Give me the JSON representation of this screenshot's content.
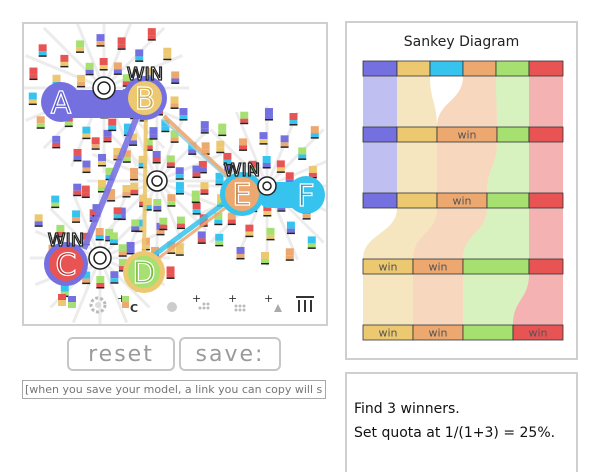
{
  "model": {
    "candidates": [
      {
        "letter": "A",
        "color": "#7470e0",
        "winner": false
      },
      {
        "letter": "B",
        "color": "#ecc870",
        "winner": true
      },
      {
        "letter": "C",
        "color": "#e85454",
        "winner": true
      },
      {
        "letter": "D",
        "color": "#a6e070",
        "winner": false
      },
      {
        "letter": "E",
        "color": "#eda870",
        "winner": true
      },
      {
        "letter": "F",
        "color": "#36c4ee",
        "winner": false
      }
    ],
    "win_label": "WIN",
    "tool_labels": {
      "add_candidate": "C",
      "add_voters": "+",
      "add_ticks": "+",
      "add_triangle": "+"
    }
  },
  "buttons": {
    "reset_label": "reset",
    "save_label": "save:"
  },
  "save_link": {
    "placeholder": "[when you save your model, a link you can copy will show up here]"
  },
  "sankey": {
    "title": "Sankey Diagram",
    "columns": [
      "#7470e0",
      "#ecc870",
      "#36c4ee",
      "#eda870",
      "#a6e070",
      "#e85454"
    ],
    "rounds": [
      [
        {
          "color": "#7470e0",
          "label": ""
        },
        {
          "color": "#ecc870",
          "label": ""
        },
        {
          "color": "#36c4ee",
          "label": ""
        },
        {
          "color": "#eda870",
          "label": ""
        },
        {
          "color": "#a6e070",
          "label": ""
        },
        {
          "color": "#e85454",
          "label": ""
        }
      ],
      [
        {
          "color": "#7470e0",
          "label": ""
        },
        {
          "color": "#ecc870",
          "label": ""
        },
        {
          "color": "#eda870",
          "label": "win"
        },
        {
          "color": "#a6e070",
          "label": ""
        },
        {
          "color": "#e85454",
          "label": ""
        }
      ],
      [
        {
          "color": "#7470e0",
          "label": ""
        },
        {
          "color": "#ecc870",
          "label": ""
        },
        {
          "color": "#eda870",
          "label": "win"
        },
        {
          "color": "#a6e070",
          "label": ""
        },
        {
          "color": "#e85454",
          "label": ""
        }
      ],
      [
        {
          "color": "#ecc870",
          "label": "win"
        },
        {
          "color": "#eda870",
          "label": "win"
        },
        {
          "color": "#a6e070",
          "label": ""
        },
        {
          "color": "#e85454",
          "label": ""
        }
      ],
      [
        {
          "color": "#ecc870",
          "label": "win"
        },
        {
          "color": "#eda870",
          "label": "win"
        },
        {
          "color": "#a6e070",
          "label": ""
        },
        {
          "color": "#e85454",
          "label": "win"
        }
      ]
    ]
  },
  "info": {
    "line1": "Find 3 winners.",
    "line2": "Set quota at 1/(1+3) = 25%."
  }
}
